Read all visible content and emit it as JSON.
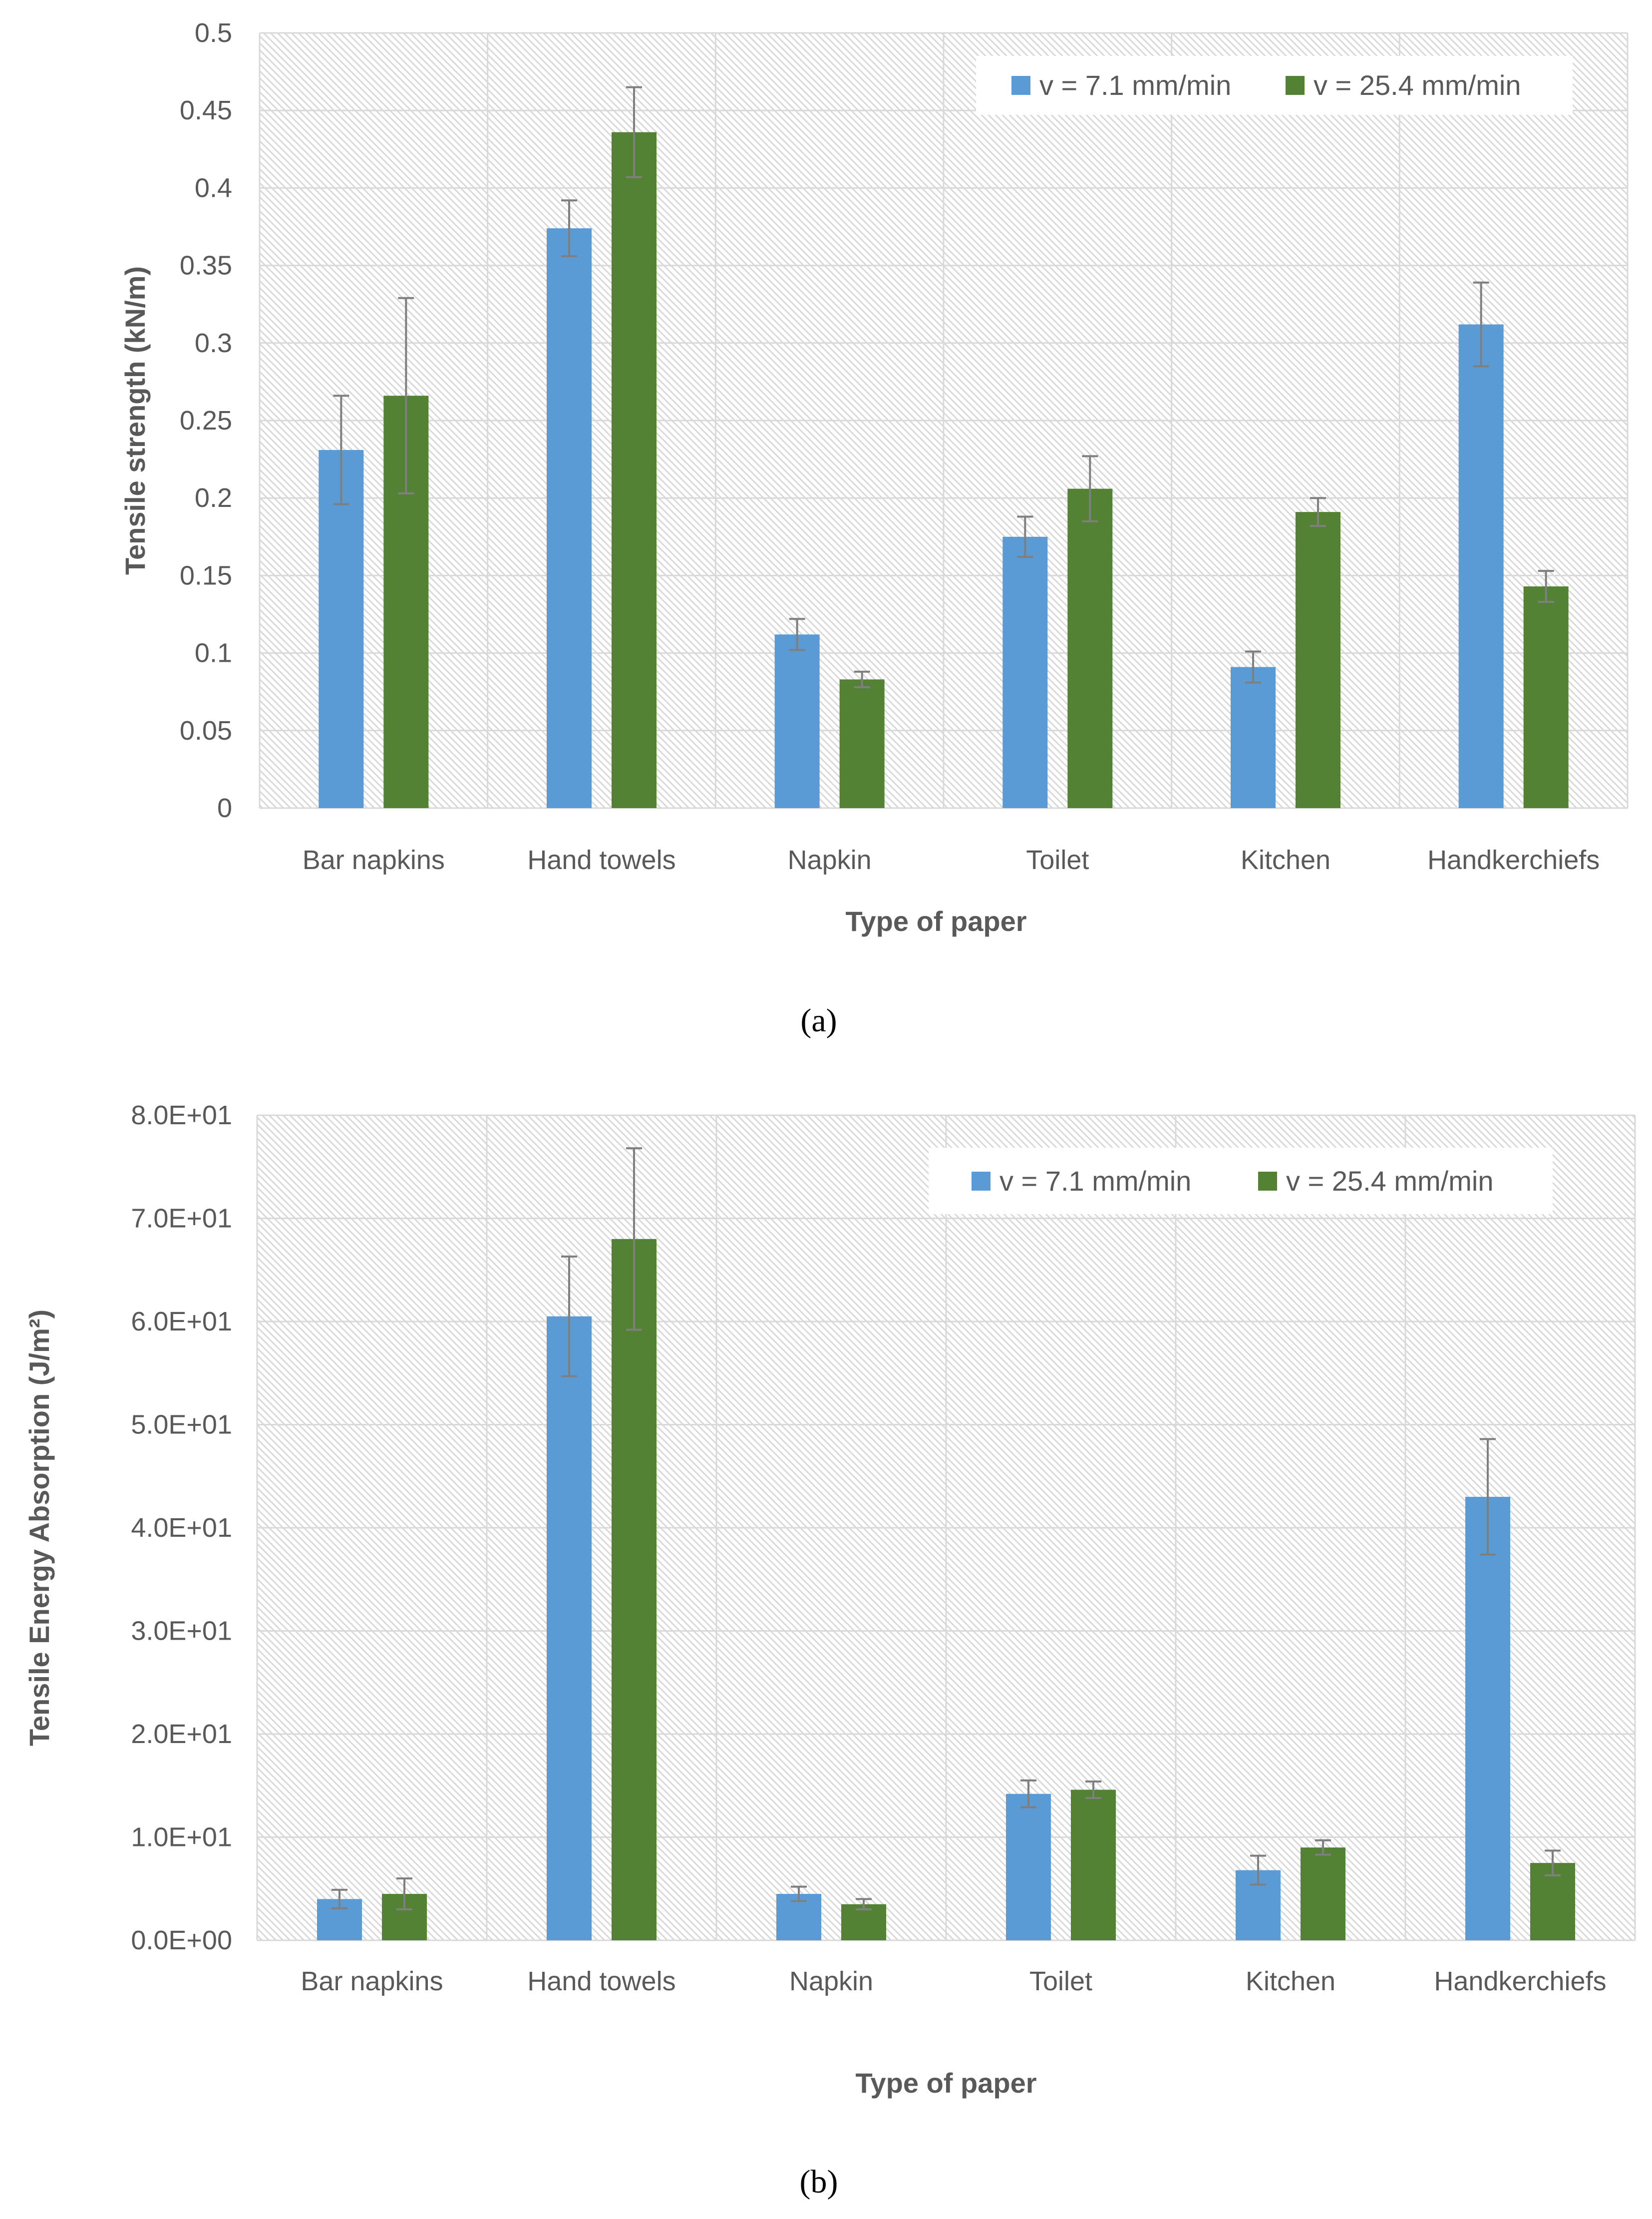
{
  "colors": {
    "series_a": "#5b9bd5",
    "series_b": "#548235",
    "plot_hatch": "#d9d9d9",
    "grid": "#d9d9d9",
    "error_bar": "#7f7f7f",
    "text": "#595959"
  },
  "chart_data": [
    {
      "type": "bar",
      "caption": "(a)",
      "categories": [
        "Bar napkins",
        "Hand towels",
        "Napkin",
        "Toilet",
        "Kitchen",
        "Handkerchiefs"
      ],
      "series": [
        {
          "name": "v = 7.1 mm/min",
          "values": [
            0.231,
            0.374,
            0.112,
            0.175,
            0.091,
            0.312
          ],
          "errors": [
            0.035,
            0.018,
            0.01,
            0.013,
            0.01,
            0.027
          ]
        },
        {
          "name": "v = 25.4 mm/min",
          "values": [
            0.266,
            0.436,
            0.083,
            0.206,
            0.191,
            0.143
          ],
          "errors": [
            0.063,
            0.029,
            0.005,
            0.021,
            0.009,
            0.01
          ]
        }
      ],
      "xlabel": "Type of paper",
      "ylabel": "Tensile strength (kN/m)",
      "ylim": [
        0,
        0.5
      ],
      "yticks": [
        "0",
        "0.05",
        "0.1",
        "0.15",
        "0.2",
        "0.25",
        "0.3",
        "0.35",
        "0.4",
        "0.45",
        "0.5"
      ],
      "grid": true,
      "legend_position": "top-right"
    },
    {
      "type": "bar",
      "caption": "(b)",
      "categories": [
        "Bar napkins",
        "Hand towels",
        "Napkin",
        "Toilet",
        "Kitchen",
        "Handkerchiefs"
      ],
      "series": [
        {
          "name": "v = 7.1 mm/min",
          "values": [
            4.0,
            60.5,
            4.5,
            14.2,
            6.8,
            43.0
          ],
          "errors": [
            0.9,
            5.8,
            0.7,
            1.3,
            1.4,
            5.6
          ]
        },
        {
          "name": "v = 25.4 mm/min",
          "values": [
            4.5,
            68.0,
            3.5,
            14.6,
            9.0,
            7.5
          ],
          "errors": [
            1.5,
            8.8,
            0.5,
            0.8,
            0.7,
            1.2
          ]
        }
      ],
      "xlabel": "Type of paper",
      "ylabel": "Tensile Energy Absorption (J/m²)",
      "ylim": [
        0,
        80
      ],
      "yticks": [
        "0.0E+00",
        "1.0E+01",
        "2.0E+01",
        "3.0E+01",
        "4.0E+01",
        "5.0E+01",
        "6.0E+01",
        "7.0E+01",
        "8.0E+01"
      ],
      "grid": true,
      "legend_position": "top-right"
    }
  ]
}
